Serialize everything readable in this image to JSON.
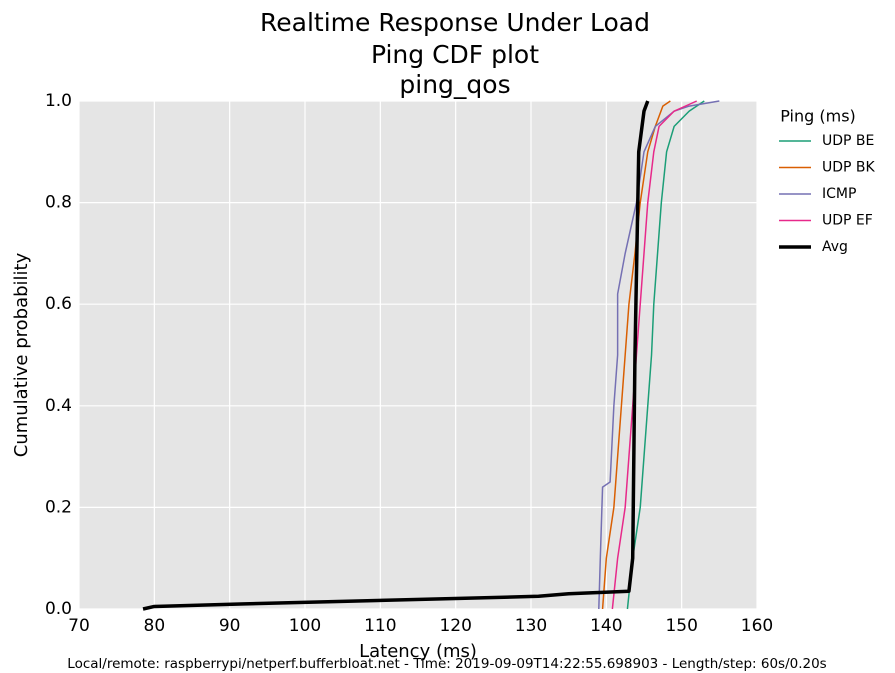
{
  "chart_data": {
    "type": "line",
    "title": "Realtime Response Under Load",
    "subtitle": "Ping CDF plot",
    "test_name": "ping_qos",
    "x_label": "Latency (ms)",
    "y_label": "Cumulative probability",
    "footer": "Local/remote: raspberrypi/netperf.bufferbloat.net - Time: 2019-09-09T14:22:55.698903 - Length/step: 60s/0.20s",
    "legend_title": "Ping (ms)",
    "legend_position": "outside right",
    "grid": true,
    "xlim": [
      70,
      160
    ],
    "ylim": [
      0,
      1
    ],
    "xticks": [
      70,
      80,
      90,
      100,
      110,
      120,
      130,
      140,
      150,
      160
    ],
    "yticks": [
      {
        "value": 0,
        "label": "0.0"
      },
      0.2,
      0.4,
      0.6,
      0.8,
      {
        "value": 1,
        "label": "1.0"
      }
    ],
    "series": [
      {
        "name": "UDP BE",
        "color": "#1b9e77",
        "width": 1.5,
        "x": [
          142.8,
          143.5,
          144.5,
          145,
          145.5,
          146,
          146.3,
          146.8,
          147.3,
          148,
          149,
          151,
          153
        ],
        "values": [
          0,
          0.1,
          0.2,
          0.3,
          0.4,
          0.5,
          0.6,
          0.7,
          0.8,
          0.9,
          0.95,
          0.98,
          1
        ]
      },
      {
        "name": "UDP BK",
        "color": "#d95f02",
        "width": 1.5,
        "x": [
          139.5,
          140,
          141,
          141.5,
          142,
          142.5,
          143,
          143.8,
          144.5,
          145.5,
          146.5,
          147.5,
          148.5
        ],
        "values": [
          0,
          0.1,
          0.2,
          0.3,
          0.4,
          0.5,
          0.6,
          0.7,
          0.8,
          0.9,
          0.95,
          0.99,
          1
        ]
      },
      {
        "name": "ICMP",
        "color": "#7570b3",
        "width": 1.5,
        "x": [
          139,
          139.2,
          139.5,
          140.5,
          141,
          141.5,
          141.5,
          142.5,
          144,
          145,
          146.5,
          149,
          151,
          155
        ],
        "values": [
          0,
          0.1,
          0.24,
          0.25,
          0.4,
          0.5,
          0.62,
          0.7,
          0.8,
          0.9,
          0.95,
          0.98,
          0.99,
          1
        ]
      },
      {
        "name": "UDP EF",
        "color": "#e7298a",
        "width": 1.5,
        "x": [
          140.8,
          141.5,
          142.5,
          143,
          143.5,
          144,
          144.5,
          145,
          145.5,
          146.3,
          147,
          149,
          152
        ],
        "values": [
          0,
          0.1,
          0.2,
          0.3,
          0.4,
          0.5,
          0.6,
          0.7,
          0.8,
          0.9,
          0.95,
          0.98,
          1
        ]
      },
      {
        "name": "Avg",
        "color": "#000000",
        "width": 3.5,
        "x": [
          78.5,
          80,
          92,
          105,
          118,
          131,
          135,
          143,
          143.5,
          143.8,
          144.3,
          145,
          145.5
        ],
        "values": [
          0,
          0.005,
          0.01,
          0.015,
          0.02,
          0.025,
          0.03,
          0.035,
          0.1,
          0.5,
          0.9,
          0.98,
          1
        ]
      }
    ]
  }
}
